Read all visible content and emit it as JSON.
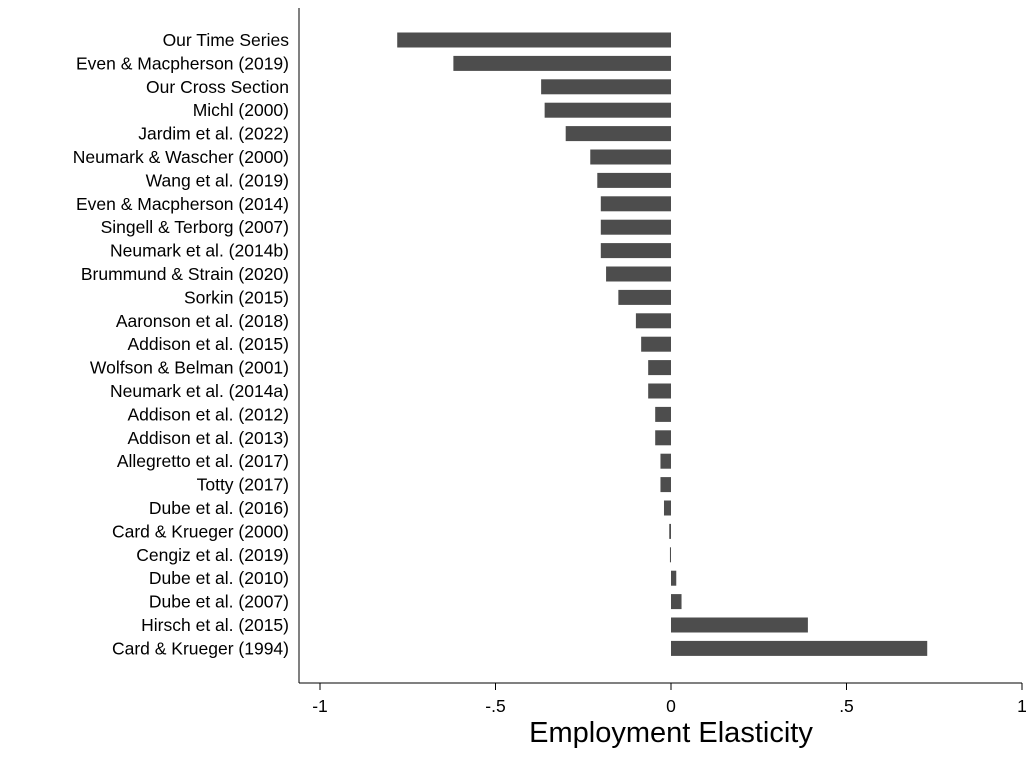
{
  "chart_data": {
    "type": "bar",
    "orientation": "horizontal",
    "categories": [
      "Our Time Series",
      "Even & Macpherson (2019)",
      "Our Cross Section",
      "Michl (2000)",
      "Jardim et al. (2022)",
      "Neumark & Wascher (2000)",
      "Wang et al. (2019)",
      "Even & Macpherson (2014)",
      "Singell & Terborg (2007)",
      "Neumark et al. (2014b)",
      "Brummund & Strain (2020)",
      "Sorkin (2015)",
      "Aaronson et al. (2018)",
      "Addison et al. (2015)",
      "Wolfson & Belman (2001)",
      "Neumark et al. (2014a)",
      "Addison et al. (2012)",
      "Addison et al. (2013)",
      "Allegretto et al. (2017)",
      "Totty (2017)",
      "Dube et al. (2016)",
      "Card & Krueger (2000)",
      "Cengiz et al. (2019)",
      "Dube et al. (2010)",
      "Dube et al. (2007)",
      "Hirsch et al. (2015)",
      "Card & Krueger (1994)"
    ],
    "values": [
      -0.78,
      -0.62,
      -0.37,
      -0.36,
      -0.3,
      -0.23,
      -0.21,
      -0.2,
      -0.2,
      -0.2,
      -0.185,
      -0.15,
      -0.1,
      -0.085,
      -0.065,
      -0.065,
      -0.045,
      -0.045,
      -0.03,
      -0.03,
      -0.02,
      -0.005,
      -0.003,
      0.015,
      0.03,
      0.39,
      0.73
    ],
    "title": "",
    "xlabel": "Employment Elasticity",
    "ylabel": "",
    "xlim": [
      -1,
      1
    ],
    "x_ticks": [
      -1,
      -0.5,
      0,
      0.5,
      1
    ],
    "x_tick_labels": [
      "-1",
      "-.5",
      "0",
      ".5",
      "1"
    ],
    "grid": false,
    "legend": "none",
    "bar_color": "#4d4d4d",
    "axis_color": "#000000",
    "background": "#ffffff"
  }
}
